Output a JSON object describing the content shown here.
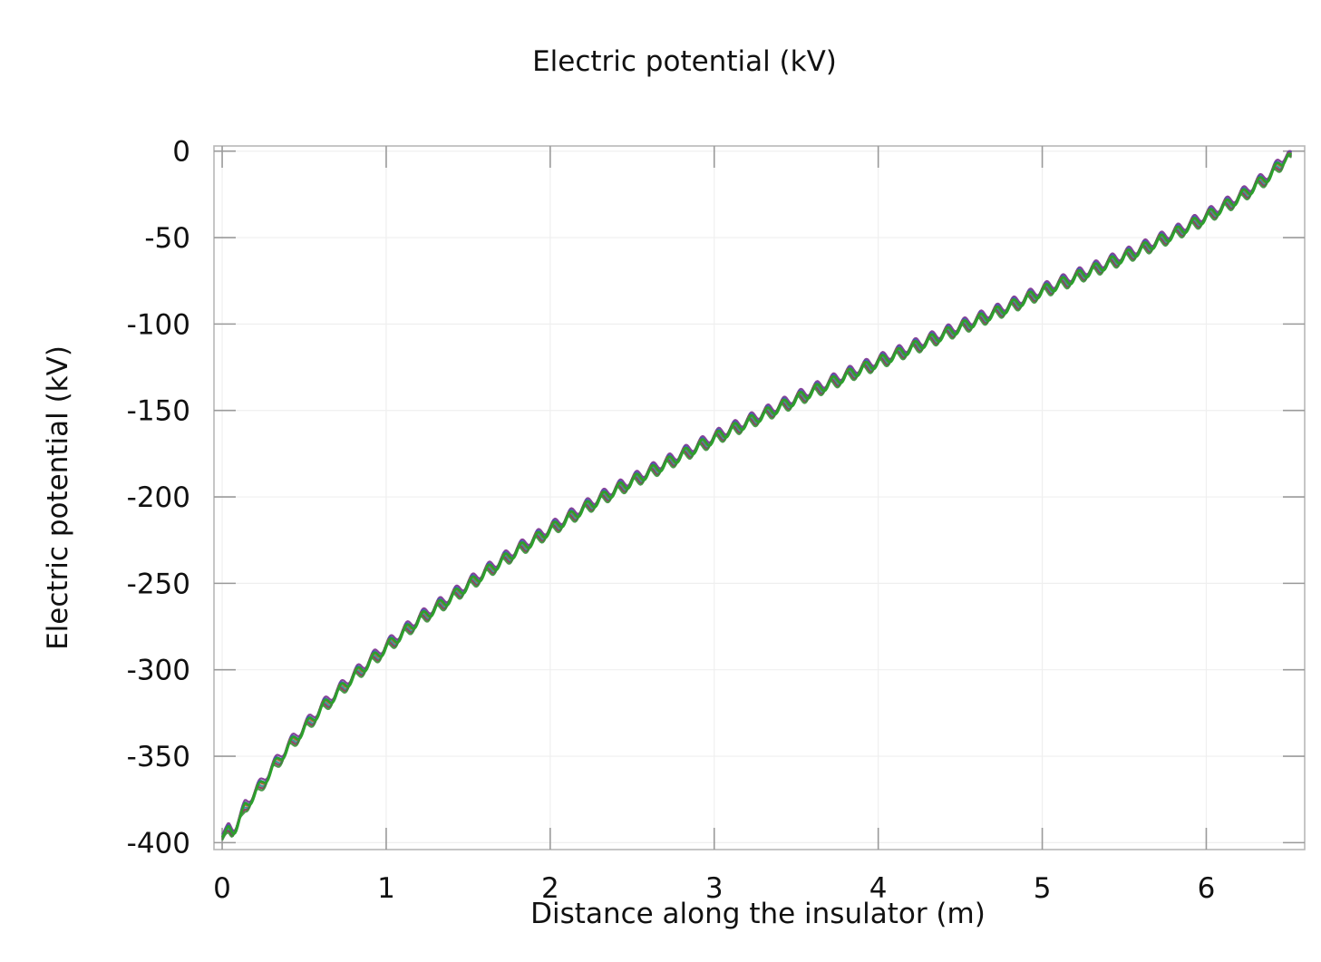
{
  "chart_data": {
    "type": "line",
    "title": "Electric potential (kV)",
    "xlabel": "Distance along the insulator (m)",
    "ylabel": "Electric potential (kV)",
    "xlim": [
      -0.05,
      6.6
    ],
    "ylim": [
      -404,
      3
    ],
    "xticks": [
      0,
      1,
      2,
      3,
      4,
      5,
      6
    ],
    "yticks": [
      0,
      -50,
      -100,
      -150,
      -200,
      -250,
      -300,
      -350,
      -400
    ],
    "grid": true,
    "legend": "none",
    "x_range": [
      0,
      6.52
    ],
    "series": [
      {
        "color": "#2ca02c",
        "base_points": [
          [
            0,
            -397
          ],
          [
            0.05,
            -390
          ],
          [
            0.1,
            -383
          ],
          [
            0.2,
            -372
          ],
          [
            0.3,
            -358
          ],
          [
            0.4,
            -345
          ],
          [
            0.5,
            -334
          ],
          [
            0.6,
            -323
          ],
          [
            0.8,
            -304
          ],
          [
            1.0,
            -287
          ],
          [
            1.2,
            -271
          ],
          [
            1.4,
            -258
          ],
          [
            1.6,
            -244
          ],
          [
            1.8,
            -231
          ],
          [
            2.0,
            -219
          ],
          [
            2.2,
            -207
          ],
          [
            2.4,
            -196
          ],
          [
            2.6,
            -186
          ],
          [
            2.8,
            -176
          ],
          [
            3.0,
            -166
          ],
          [
            3.2,
            -157
          ],
          [
            3.4,
            -148
          ],
          [
            3.6,
            -139
          ],
          [
            3.8,
            -130
          ],
          [
            4.0,
            -122
          ],
          [
            4.2,
            -114
          ],
          [
            4.4,
            -106
          ],
          [
            4.6,
            -98
          ],
          [
            4.8,
            -90
          ],
          [
            5.0,
            -81
          ],
          [
            5.2,
            -73
          ],
          [
            5.4,
            -65
          ],
          [
            5.6,
            -57
          ],
          [
            5.8,
            -48
          ],
          [
            6.0,
            -38
          ],
          [
            6.2,
            -27
          ],
          [
            6.4,
            -13
          ],
          [
            6.5,
            -2
          ]
        ],
        "ripple_period": 0.1,
        "ripple_amplitude": 3
      },
      {
        "color": "#7a2f8f",
        "offset": 1.8
      },
      {
        "color": "#2f5fb3",
        "offset": 1.0
      },
      {
        "color": "#b0522e",
        "offset": 0.4
      },
      {
        "color": "#2a8f8f",
        "offset": -0.4
      },
      {
        "color": "#8f2f55",
        "offset": -1.0
      },
      {
        "color": "#3a8f3a",
        "offset": -1.6
      }
    ]
  }
}
